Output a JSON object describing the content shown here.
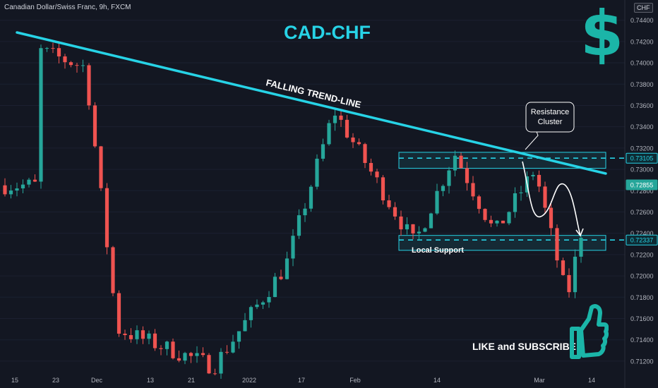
{
  "header": {
    "symbol": "Canadian Dollar/Swiss Franc, 9h, FXCM",
    "currency_badge": "CHF"
  },
  "annotations": {
    "title": "CAD-CHF",
    "trend_label": "FALLING TREND-LINE",
    "resistance_label_line1": "Resistance",
    "resistance_label_line2": "Cluster",
    "support_label": "Local Support",
    "cta": "LIKE and SUBSCRIBE",
    "dollar_symbol": "$"
  },
  "colors": {
    "background": "#131722",
    "up": "#26a69a",
    "down": "#ef5350",
    "accent": "#27d3e6",
    "logo": "#1bb5a8"
  },
  "icons": [
    "thumbs-up-icon"
  ],
  "chart_data": {
    "type": "candlestick",
    "ylim": [
      0.711,
      0.7455
    ],
    "y_ticks": [
      "0.74400",
      "0.74200",
      "0.74000",
      "0.73800",
      "0.73600",
      "0.73400",
      "0.73200",
      "0.73000",
      "0.72800",
      "0.72600",
      "0.72400",
      "0.72200",
      "0.72000",
      "0.71800",
      "0.71600",
      "0.71400",
      "0.71200"
    ],
    "x_tick_labels": [
      "15",
      "23",
      "Dec",
      "13",
      "21",
      "2022",
      "17",
      "Feb",
      "14",
      "Mar",
      "14"
    ],
    "price_markers": [
      {
        "label": "0.73105",
        "value": 0.73105,
        "kind": "resistance"
      },
      {
        "label": "0.72855",
        "value": 0.72855,
        "kind": "last"
      },
      {
        "label": "0.72337",
        "value": 0.72337,
        "kind": "support"
      }
    ],
    "zones": [
      {
        "name": "resistance",
        "low": 0.7301,
        "high": 0.7316
      },
      {
        "name": "support",
        "low": 0.7224,
        "high": 0.7238
      }
    ],
    "trendline": {
      "start": [
        15,
        0.7433
      ],
      "end": [
        95,
        0.7295
      ]
    },
    "projection": [
      [
        73,
        0.7306
      ],
      [
        77,
        0.7265
      ],
      [
        81,
        0.7283
      ],
      [
        85,
        0.7234
      ]
    ],
    "key_closes": [
      {
        "x": 4,
        "close": 0.7412
      },
      {
        "x": 10,
        "close": 0.7396
      },
      {
        "x": 14,
        "close": 0.715
      },
      {
        "x": 26,
        "close": 0.7115
      },
      {
        "x": 35,
        "close": 0.721
      },
      {
        "x": 41,
        "close": 0.7355
      },
      {
        "x": 51,
        "close": 0.723
      },
      {
        "x": 56,
        "close": 0.7315
      },
      {
        "x": 61,
        "close": 0.724
      },
      {
        "x": 66,
        "close": 0.73
      },
      {
        "x": 70,
        "close": 0.7178
      },
      {
        "x": 73,
        "close": 0.7285
      }
    ]
  }
}
